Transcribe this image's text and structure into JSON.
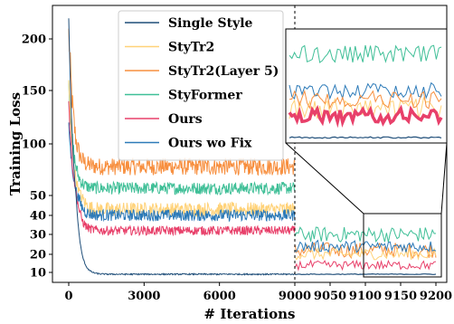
{
  "chart_data": {
    "type": "line",
    "title": "",
    "xlabel": "# Iterations",
    "ylabel": "Training Loss",
    "x_ticks_left": [
      "0",
      "3000",
      "6000",
      "9000"
    ],
    "x_ticks_right": [
      "9050",
      "9100",
      "9150",
      "9200"
    ],
    "y_ticks": [
      "10",
      "20",
      "30",
      "40",
      "50",
      "100",
      "150",
      "200"
    ],
    "y_tick_values": [
      10,
      20,
      30,
      40,
      50,
      100,
      150,
      200
    ],
    "y_scale": "piecewise-compressed",
    "xlim_left": [
      0,
      9000
    ],
    "xlim_right": [
      9000,
      9200
    ],
    "legend_position": "top-center",
    "inset": "zoom of iterations 9100-9200",
    "series": [
      {
        "name": "Single Style",
        "color": "#1f4e79",
        "start": 220,
        "level": 9,
        "noise": 0.6,
        "width": 1.2
      },
      {
        "name": "StyTr2",
        "color": "#ffd278",
        "start": 160,
        "level": 43,
        "noise": 6,
        "width": 1.2
      },
      {
        "name": "StyTr2(Layer 5)",
        "color": "#f78f3f",
        "start": 210,
        "level": 78,
        "noise": 14,
        "width": 1.2
      },
      {
        "name": "StyFormer",
        "color": "#3fbf97",
        "start": 160,
        "level": 57,
        "noise": 10,
        "width": 1.2
      },
      {
        "name": "Ours",
        "color": "#e8406a",
        "start": 140,
        "level": 32,
        "noise": 4,
        "width": 1.2
      },
      {
        "name": "Ours wo Fix",
        "color": "#2c7ab8",
        "start": 120,
        "level": 40,
        "noise": 5,
        "width": 1.2
      }
    ]
  }
}
